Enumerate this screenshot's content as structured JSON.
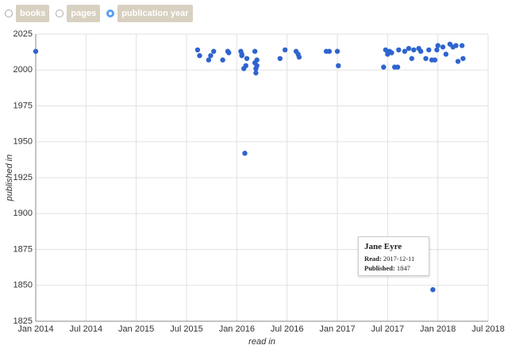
{
  "controls": [
    {
      "label": "books"
    },
    {
      "label": "pages"
    },
    {
      "label": "publication year"
    }
  ],
  "selected_control": 2,
  "chart_data": {
    "type": "scatter",
    "x_label": "read in",
    "y_label": "published in",
    "color": "#2f64cf",
    "grid": true,
    "xlim": [
      2014,
      2018.5
    ],
    "xticks": [
      {
        "value": 2014,
        "label": "Jan 2014"
      },
      {
        "value": 2014.5,
        "label": "Jul 2014"
      },
      {
        "value": 2015,
        "label": "Jan 2015"
      },
      {
        "value": 2015.5,
        "label": "Jul 2015"
      },
      {
        "value": 2016,
        "label": "Jan 2016"
      },
      {
        "value": 2016.5,
        "label": "Jul 2016"
      },
      {
        "value": 2017,
        "label": "Jan 2017"
      },
      {
        "value": 2017.5,
        "label": "Jul 2017"
      },
      {
        "value": 2018,
        "label": "Jan 2018"
      },
      {
        "value": 2018.5,
        "label": "Jul 2018"
      }
    ],
    "ylim": [
      1825,
      2025
    ],
    "yticks": [
      1825,
      1850,
      1875,
      1900,
      1925,
      1950,
      1975,
      2000,
      2025
    ],
    "x": [
      2014.0,
      2015.61,
      2015.63,
      2015.72,
      2015.74,
      2015.77,
      2015.86,
      2015.91,
      2015.92,
      2016.04,
      2016.05,
      2016.05,
      2016.07,
      2016.09,
      2016.08,
      2016.1,
      2016.18,
      2016.18,
      2016.2,
      2016.19,
      2016.19,
      2016.2,
      2016.43,
      2016.48,
      2016.59,
      2016.61,
      2016.62,
      2016.89,
      2016.92,
      2017.0,
      2017.01,
      2017.46,
      2017.48,
      2017.5,
      2017.52,
      2017.54,
      2017.57,
      2017.6,
      2017.61,
      2017.67,
      2017.71,
      2017.74,
      2017.76,
      2017.81,
      2017.83,
      2017.88,
      2017.91,
      2017.94,
      2017.97,
      2017.99,
      2018.0,
      2018.05,
      2018.08,
      2018.12,
      2018.15,
      2018.18,
      2018.2,
      2018.24,
      2018.25,
      2017.95
    ],
    "values": [
      2013,
      2014,
      2010,
      2007,
      2010,
      2013,
      2007,
      2013,
      2012,
      2013,
      2011,
      2010,
      2001,
      2003,
      1942,
      2008,
      2013,
      2005,
      2007,
      2001,
      1998,
      2003,
      2008,
      2014,
      2013,
      2011,
      2009,
      2013,
      2013,
      2013,
      2003,
      2002,
      2014,
      2011,
      2013,
      2012,
      2002,
      2002,
      2014,
      2013,
      2015,
      2008,
      2014,
      2015,
      2013,
      2008,
      2014,
      2007,
      2007,
      2014,
      2017,
      2016,
      2011,
      2018,
      2016,
      2017,
      2006,
      2017,
      2008,
      1847
    ]
  },
  "tooltip": {
    "title": "Jane Eyre",
    "rows": [
      {
        "label": "Read:",
        "value": "2017-12-11"
      },
      {
        "label": "Published:",
        "value": "1847"
      }
    ]
  }
}
